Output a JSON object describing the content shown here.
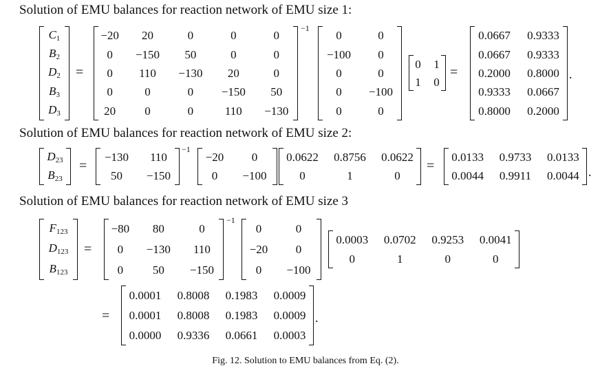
{
  "headings": {
    "size1": "Solution of EMU balances for reaction network of EMU size 1:",
    "size2": "Solution of EMU balances for reaction network of EMU size 2:",
    "size3": "Solution of EMU balances for reaction network of EMU size 3"
  },
  "symbols": {
    "equals": "=",
    "inverse": "−1",
    "period": "."
  },
  "caption": "Fig. 12. Solution to EMU balances from Eq. (2).",
  "eq1": {
    "vector": [
      [
        "C",
        "1"
      ],
      [
        "B",
        "2"
      ],
      [
        "D",
        "2"
      ],
      [
        "B",
        "3"
      ],
      [
        "D",
        "3"
      ]
    ],
    "A": [
      [
        "−20",
        "20",
        "0",
        "0",
        "0"
      ],
      [
        "0",
        "−150",
        "50",
        "0",
        "0"
      ],
      [
        "0",
        "110",
        "−130",
        "20",
        "0"
      ],
      [
        "0",
        "0",
        "0",
        "−150",
        "50"
      ],
      [
        "20",
        "0",
        "0",
        "110",
        "−130"
      ]
    ],
    "B": [
      [
        "0",
        "0"
      ],
      [
        "−100",
        "0"
      ],
      [
        "0",
        "0"
      ],
      [
        "0",
        "−100"
      ],
      [
        "0",
        "0"
      ]
    ],
    "Y": [
      [
        "0",
        "1"
      ],
      [
        "1",
        "0"
      ]
    ],
    "result": [
      [
        "0.0667",
        "0.9333"
      ],
      [
        "0.0667",
        "0.9333"
      ],
      [
        "0.2000",
        "0.8000"
      ],
      [
        "0.9333",
        "0.0667"
      ],
      [
        "0.8000",
        "0.2000"
      ]
    ]
  },
  "eq2": {
    "vector": [
      [
        "D",
        "23"
      ],
      [
        "B",
        "23"
      ]
    ],
    "A": [
      [
        "−130",
        "110"
      ],
      [
        "50",
        "−150"
      ]
    ],
    "B": [
      [
        "−20",
        "0"
      ],
      [
        "0",
        "−100"
      ]
    ],
    "Y": [
      [
        "0.0622",
        "0.8756",
        "0.0622"
      ],
      [
        "0",
        "1",
        "0"
      ]
    ],
    "result": [
      [
        "0.0133",
        "0.9733",
        "0.0133"
      ],
      [
        "0.0044",
        "0.9911",
        "0.0044"
      ]
    ]
  },
  "eq3": {
    "vector": [
      [
        "F",
        "123"
      ],
      [
        "D",
        "123"
      ],
      [
        "B",
        "123"
      ]
    ],
    "A": [
      [
        "−80",
        "80",
        "0"
      ],
      [
        "0",
        "−130",
        "110"
      ],
      [
        "0",
        "50",
        "−150"
      ]
    ],
    "B": [
      [
        "0",
        "0"
      ],
      [
        "−20",
        "0"
      ],
      [
        "0",
        "−100"
      ]
    ],
    "Y": [
      [
        "0.0003",
        "0.0702",
        "0.9253",
        "0.0041"
      ],
      [
        "0",
        "1",
        "0",
        "0"
      ]
    ],
    "result": [
      [
        "0.0001",
        "0.8008",
        "0.1983",
        "0.0009"
      ],
      [
        "0.0001",
        "0.8008",
        "0.1983",
        "0.0009"
      ],
      [
        "0.0000",
        "0.9336",
        "0.0661",
        "0.0003"
      ]
    ]
  }
}
